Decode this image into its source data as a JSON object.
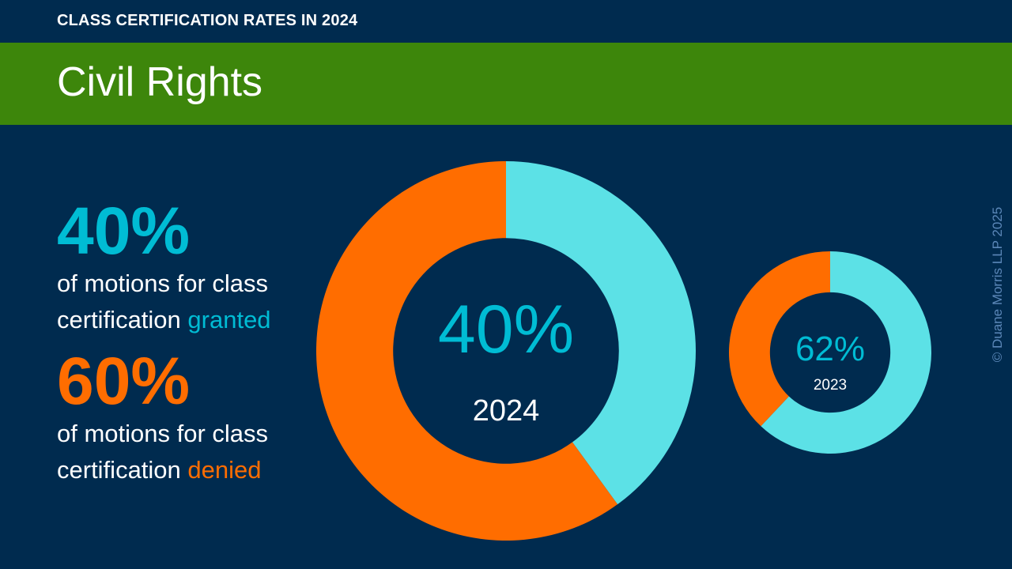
{
  "header": {
    "eyebrow": "CLASS CERTIFICATION RATES IN 2024",
    "title": "Civil Rights"
  },
  "stats": {
    "granted": {
      "percent": "40%",
      "line1": "of motions for class",
      "line2_prefix": "certification ",
      "keyword": "granted"
    },
    "denied": {
      "percent": "60%",
      "line1": "of motions for class",
      "line2_prefix": "certification ",
      "keyword": "denied"
    }
  },
  "colors": {
    "background": "#002b4f",
    "banner": "#3d860b",
    "granted": "#5ce1e6",
    "granted_text": "#00bcd4",
    "denied": "#ff6d00"
  },
  "chart_data": [
    {
      "type": "pie",
      "variant": "donut",
      "center_value": "40%",
      "center_label": "2024",
      "slices": [
        {
          "category": "granted",
          "value": 40
        },
        {
          "category": "denied",
          "value": 60
        }
      ]
    },
    {
      "type": "pie",
      "variant": "donut",
      "center_value": "62%",
      "center_label": "2023",
      "slices": [
        {
          "category": "granted",
          "value": 62
        },
        {
          "category": "denied",
          "value": 38
        }
      ]
    }
  ],
  "copyright": "© Duane Morris LLP 2025"
}
